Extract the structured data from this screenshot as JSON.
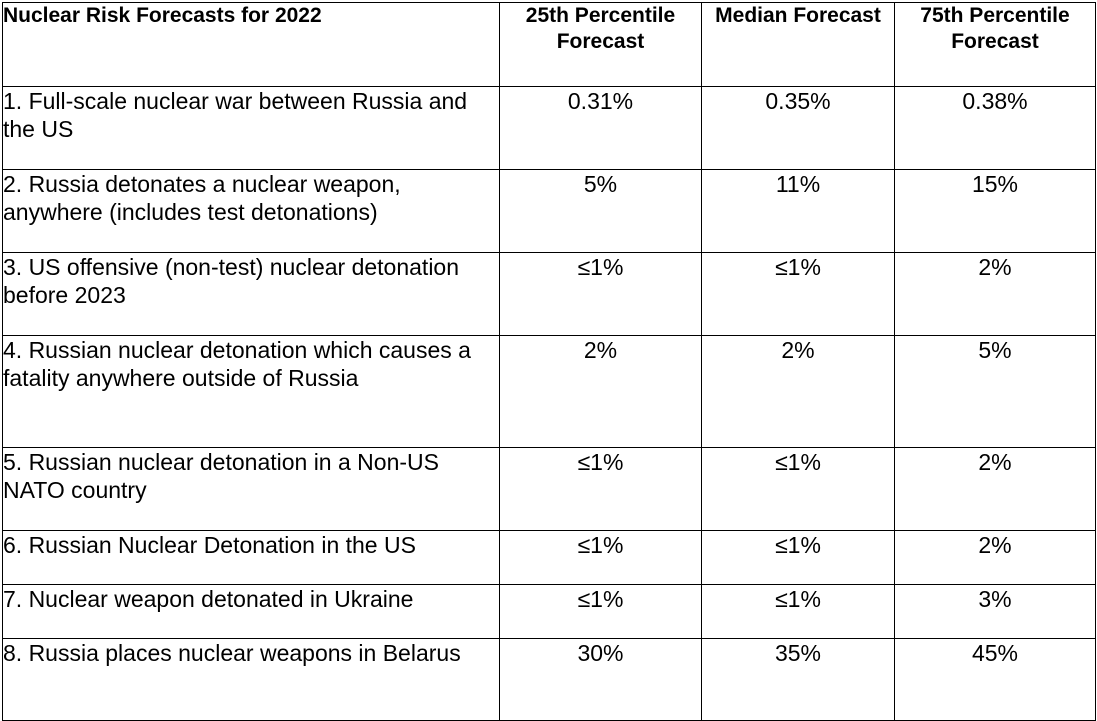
{
  "table": {
    "headers": [
      "Nuclear Risk Forecasts for 2022",
      "25th Percentile Forecast",
      "Median Forecast",
      "75th Percentile Forecast"
    ],
    "rows": [
      {
        "label": "1. Full-scale nuclear war between Russia and the US",
        "p25": "0.31%",
        "median": "0.35%",
        "p75": "0.38%"
      },
      {
        "label": "2. Russia detonates a nuclear weapon, anywhere (includes test detonations)",
        "p25": "5%",
        "median": "11%",
        "p75": "15%"
      },
      {
        "label": "3. US offensive (non-test) nuclear detonation before 2023",
        "p25": "≤1%",
        "median": "≤1%",
        "p75": "2%"
      },
      {
        "label": "4. Russian nuclear detonation which causes a fatality anywhere outside of Russia",
        "p25": "2%",
        "median": "2%",
        "p75": "5%"
      },
      {
        "label": "5. Russian nuclear detonation in a Non-US NATO country",
        "p25": "≤1%",
        "median": "≤1%",
        "p75": "2%"
      },
      {
        "label": "6. Russian Nuclear Detonation in the US",
        "p25": "≤1%",
        "median": "≤1%",
        "p75": "2%"
      },
      {
        "label": "7. Nuclear weapon detonated in Ukraine",
        "p25": "≤1%",
        "median": "≤1%",
        "p75": "3%"
      },
      {
        "label": "8. Russia places nuclear weapons in Belarus",
        "p25": "30%",
        "median": "35%",
        "p75": "45%"
      }
    ]
  }
}
